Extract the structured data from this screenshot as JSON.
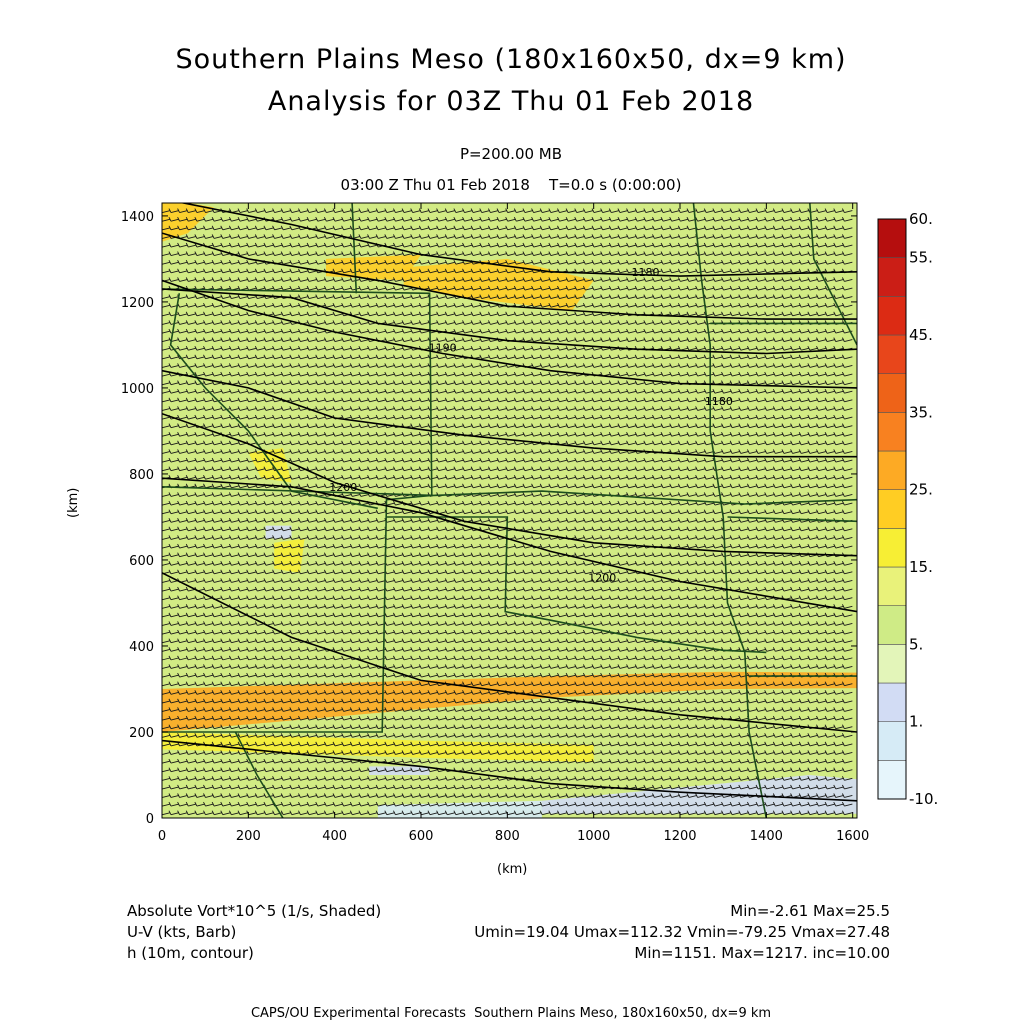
{
  "header": {
    "title_line1": "Southern Plains Meso (180x160x50, dx=9 km)",
    "title_line2": "Analysis for 03Z Thu 01 Feb 2018",
    "level": "P=200.00 MB",
    "subtitle": "03:00 Z Thu 01 Feb 2018    T=0.0 s (0:00:00)"
  },
  "footer": {
    "line1_left": "Absolute Vort*10^5 (1/s, Shaded)",
    "line1_right": "Min=-2.61 Max=25.5",
    "line2_left": "U-V (kts, Barb)",
    "line2_right": "Umin=19.04 Umax=112.32 Vmin=-79.25 Vmax=27.48",
    "line3_left": "h (10m, contour)",
    "line3_right": "Min=1151. Max=1217. inc=10.00",
    "credit": "CAPS/OU Experimental Forecasts  Southern Plains Meso, 180x160x50, dx=9 km"
  },
  "colors": {
    "background_field": "#d2eb84",
    "contour": "#000000",
    "boundary": "#1d4d1d",
    "barb": "#1a1a1a"
  },
  "chart_data": {
    "type": "heatmap",
    "xlabel": "(km)",
    "ylabel": "(km)",
    "xlim": [
      0,
      1610
    ],
    "ylim": [
      0,
      1430
    ],
    "x_ticks": [
      0,
      200,
      400,
      600,
      800,
      1000,
      1200,
      1400,
      1600
    ],
    "y_ticks": [
      0,
      200,
      400,
      600,
      800,
      1000,
      1200,
      1400
    ],
    "colorbar": {
      "tick_labels": [
        "-10.",
        "1.",
        "5.",
        "15.",
        "25.",
        "35.",
        "45.",
        "55.",
        "60."
      ],
      "bins": [
        {
          "lo": -10,
          "hi": -5,
          "color": "#e6f5fb"
        },
        {
          "lo": -5,
          "hi": 0,
          "color": "#d6ebf6"
        },
        {
          "lo": 0,
          "hi": 1,
          "color": "#d2dcf4"
        },
        {
          "lo": 1,
          "hi": 5,
          "color": "#e3f5b9"
        },
        {
          "lo": 5,
          "hi": 10,
          "color": "#cfeb86"
        },
        {
          "lo": 10,
          "hi": 15,
          "color": "#e9f27a"
        },
        {
          "lo": 15,
          "hi": 20,
          "color": "#f7ee34"
        },
        {
          "lo": 20,
          "hi": 25,
          "color": "#ffcd23"
        },
        {
          "lo": 25,
          "hi": 30,
          "color": "#fdaa24"
        },
        {
          "lo": 30,
          "hi": 35,
          "color": "#f88120"
        },
        {
          "lo": 35,
          "hi": 40,
          "color": "#ee6318"
        },
        {
          "lo": 40,
          "hi": 45,
          "color": "#e8461b"
        },
        {
          "lo": 45,
          "hi": 50,
          "color": "#dc2b14"
        },
        {
          "lo": 50,
          "hi": 55,
          "color": "#cb1e16"
        },
        {
          "lo": 55,
          "hi": 60,
          "color": "#b50e0e"
        }
      ]
    },
    "shaded_regions": [
      {
        "level": 25,
        "points": [
          [
            0,
            300
          ],
          [
            900,
            330
          ],
          [
            1300,
            340
          ],
          [
            1610,
            338
          ],
          [
            1610,
            302
          ],
          [
            1300,
            300
          ],
          [
            900,
            280
          ],
          [
            0,
            200
          ]
        ]
      },
      {
        "level": 20,
        "points": [
          [
            0,
            1440
          ],
          [
            120,
            1420
          ],
          [
            60,
            1360
          ],
          [
            0,
            1340
          ]
        ]
      },
      {
        "level": 20,
        "points": [
          [
            560,
            1280
          ],
          [
            800,
            1300
          ],
          [
            1000,
            1250
          ],
          [
            950,
            1180
          ],
          [
            700,
            1210
          ],
          [
            560,
            1240
          ]
        ]
      },
      {
        "level": 20,
        "points": [
          [
            380,
            1300
          ],
          [
            600,
            1310
          ],
          [
            560,
            1250
          ],
          [
            380,
            1260
          ]
        ]
      },
      {
        "level": 15,
        "points": [
          [
            200,
            850
          ],
          [
            280,
            860
          ],
          [
            300,
            780
          ],
          [
            230,
            790
          ]
        ]
      },
      {
        "level": 15,
        "points": [
          [
            260,
            640
          ],
          [
            330,
            650
          ],
          [
            320,
            570
          ],
          [
            260,
            580
          ]
        ]
      },
      {
        "level": 15,
        "points": [
          [
            0,
            200
          ],
          [
            600,
            180
          ],
          [
            1000,
            170
          ],
          [
            1000,
            130
          ],
          [
            600,
            140
          ],
          [
            0,
            160
          ]
        ]
      },
      {
        "level": 0,
        "points": [
          [
            240,
            680
          ],
          [
            300,
            680
          ],
          [
            300,
            650
          ],
          [
            240,
            650
          ]
        ]
      },
      {
        "level": 0,
        "points": [
          [
            880,
            40
          ],
          [
            1500,
            100
          ],
          [
            1610,
            90
          ],
          [
            1610,
            10
          ],
          [
            880,
            10
          ]
        ]
      },
      {
        "level": -5,
        "points": [
          [
            500,
            30
          ],
          [
            880,
            40
          ],
          [
            880,
            0
          ],
          [
            500,
            0
          ]
        ]
      },
      {
        "level": 0,
        "points": [
          [
            480,
            120
          ],
          [
            620,
            120
          ],
          [
            620,
            100
          ],
          [
            480,
            100
          ]
        ]
      }
    ],
    "contours": [
      {
        "label": "",
        "points": [
          [
            0,
            1360
          ],
          [
            200,
            1300
          ],
          [
            500,
            1250
          ],
          [
            800,
            1190
          ],
          [
            1100,
            1170
          ],
          [
            1400,
            1160
          ],
          [
            1610,
            1160
          ]
        ]
      },
      {
        "label": "1180",
        "label_at": [
          1120,
          1260
        ],
        "points": [
          [
            0,
            1440
          ],
          [
            300,
            1380
          ],
          [
            600,
            1310
          ],
          [
            900,
            1270
          ],
          [
            1200,
            1260
          ],
          [
            1610,
            1270
          ]
        ]
      },
      {
        "label": "",
        "points": [
          [
            0,
            1230
          ],
          [
            300,
            1210
          ],
          [
            500,
            1150
          ],
          [
            800,
            1110
          ],
          [
            1100,
            1090
          ],
          [
            1400,
            1080
          ],
          [
            1610,
            1090
          ]
        ]
      },
      {
        "label": "1190",
        "label_at": [
          650,
          1085
        ],
        "points": [
          [
            0,
            1250
          ],
          [
            200,
            1180
          ],
          [
            400,
            1130
          ],
          [
            650,
            1080
          ],
          [
            900,
            1040
          ],
          [
            1200,
            1010
          ],
          [
            1610,
            1000
          ]
        ]
      },
      {
        "label": "1180",
        "label_at": [
          1290,
          960
        ],
        "points": [
          [
            0,
            1040
          ],
          [
            200,
            1000
          ],
          [
            400,
            930
          ],
          [
            700,
            890
          ],
          [
            1000,
            860
          ],
          [
            1300,
            840
          ],
          [
            1610,
            840
          ]
        ]
      },
      {
        "label": "1200",
        "label_at": [
          420,
          760
        ],
        "points": [
          [
            0,
            940
          ],
          [
            200,
            870
          ],
          [
            400,
            780
          ],
          [
            700,
            690
          ],
          [
            1000,
            640
          ],
          [
            1300,
            620
          ],
          [
            1610,
            610
          ]
        ]
      },
      {
        "label": "1200",
        "label_at": [
          1020,
          550
        ],
        "points": [
          [
            0,
            790
          ],
          [
            300,
            770
          ],
          [
            600,
            710
          ],
          [
            900,
            620
          ],
          [
            1200,
            550
          ],
          [
            1610,
            480
          ]
        ]
      },
      {
        "label": "",
        "points": [
          [
            0,
            570
          ],
          [
            300,
            420
          ],
          [
            600,
            320
          ],
          [
            900,
            280
          ],
          [
            1200,
            240
          ],
          [
            1610,
            200
          ]
        ]
      },
      {
        "label": "",
        "points": [
          [
            0,
            180
          ],
          [
            300,
            150
          ],
          [
            600,
            120
          ],
          [
            900,
            80
          ],
          [
            1200,
            60
          ],
          [
            1610,
            40
          ]
        ]
      }
    ],
    "boundaries": [
      [
        [
          0,
          1230
        ],
        [
          620,
          1220
        ],
        [
          625,
          750
        ],
        [
          520,
          740
        ],
        [
          510,
          200
        ],
        [
          0,
          200
        ]
      ],
      [
        [
          440,
          1440
        ],
        [
          450,
          1220
        ]
      ],
      [
        [
          0,
          770
        ],
        [
          630,
          750
        ],
        [
          880,
          760
        ],
        [
          1350,
          730
        ],
        [
          1610,
          740
        ]
      ],
      [
        [
          520,
          700
        ],
        [
          800,
          700
        ],
        [
          795,
          480
        ],
        [
          900,
          460
        ],
        [
          1100,
          420
        ],
        [
          1300,
          390
        ],
        [
          1400,
          385
        ]
      ],
      [
        [
          40,
          1220
        ],
        [
          20,
          1100
        ],
        [
          100,
          1000
        ],
        [
          200,
          900
        ],
        [
          300,
          760
        ],
        [
          500,
          720
        ]
      ],
      [
        [
          1230,
          1440
        ],
        [
          1250,
          1250
        ],
        [
          1270,
          1100
        ],
        [
          1270,
          900
        ],
        [
          1300,
          700
        ],
        [
          1310,
          500
        ],
        [
          1350,
          385
        ],
        [
          1360,
          200
        ],
        [
          1400,
          0
        ]
      ],
      [
        [
          170,
          200
        ],
        [
          220,
          100
        ],
        [
          280,
          0
        ]
      ],
      [
        [
          1500,
          1440
        ],
        [
          1510,
          1300
        ],
        [
          1560,
          1200
        ],
        [
          1610,
          1100
        ]
      ],
      [
        [
          1270,
          1150
        ],
        [
          1610,
          1150
        ]
      ],
      [
        [
          1310,
          700
        ],
        [
          1610,
          690
        ]
      ],
      [
        [
          1360,
          330
        ],
        [
          1610,
          330
        ]
      ]
    ],
    "barb_field": {
      "dx_km": 20,
      "dy_km": 20,
      "direction": "westerly"
    }
  }
}
